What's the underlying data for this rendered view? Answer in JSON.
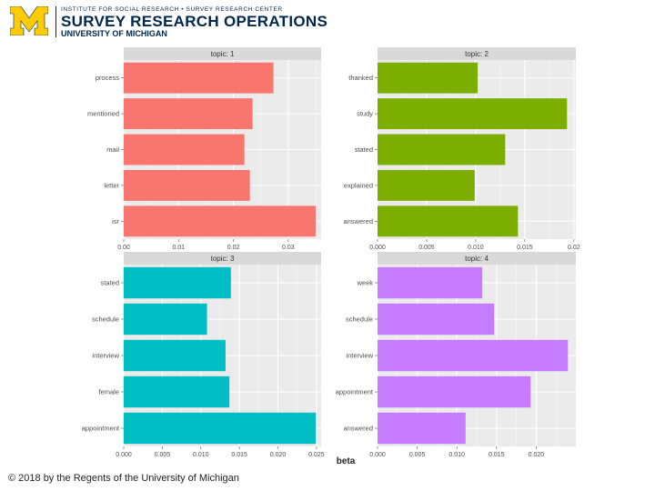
{
  "header": {
    "institute_line": "INSTITUTE FOR SOCIAL RESEARCH • SURVEY RESEARCH CENTER",
    "org_name": "SURVEY RESEARCH OPERATIONS",
    "university": "UNIVERSITY OF MICHIGAN",
    "logo_letter": "M",
    "brand_blue": "#00274c",
    "brand_maize": "#ffcb05"
  },
  "footer": {
    "copyright": "© 2018 by the Regents of the University of Michigan"
  },
  "chart_data": {
    "type": "bar",
    "orientation": "horizontal",
    "layout": "facet 2x2",
    "xlabel": "beta",
    "panel_background": "#ebebeb",
    "strip_background": "#d9d9d9",
    "panels": [
      {
        "strip": "topic: 1",
        "color": "#f8766d",
        "categories": [
          "process",
          "mentioned",
          "mail",
          "letter",
          "isr"
        ],
        "values": [
          0.0273,
          0.0235,
          0.022,
          0.023,
          0.035
        ],
        "xlim": [
          0,
          0.036
        ],
        "xticks": [
          0,
          0.01,
          0.02,
          0.03
        ],
        "xtick_labels": [
          "0.00",
          "0.01",
          "0.02",
          "0.03"
        ]
      },
      {
        "strip": "topic: 2",
        "color": "#7cae00",
        "categories": [
          "thanked",
          "study",
          "stated",
          "explained",
          "answered"
        ],
        "values": [
          0.0102,
          0.0193,
          0.013,
          0.0099,
          0.0143
        ],
        "xlim": [
          0,
          0.0202
        ],
        "xticks": [
          0,
          0.005,
          0.01,
          0.015,
          0.02
        ],
        "xtick_labels": [
          "0.000",
          "0.005",
          "0.010",
          "0.015",
          "0.02"
        ]
      },
      {
        "strip": "topic: 3",
        "color": "#00bfc4",
        "categories": [
          "stated",
          "schedule",
          "interview",
          "female",
          "appointment"
        ],
        "values": [
          0.0139,
          0.0108,
          0.0132,
          0.0137,
          0.0249
        ],
        "xlim": [
          0,
          0.0256
        ],
        "xticks": [
          0,
          0.005,
          0.01,
          0.015,
          0.02,
          0.025
        ],
        "xtick_labels": [
          "0.000",
          "0.005",
          "0.010",
          "0.015",
          "0.020",
          "0.025"
        ]
      },
      {
        "strip": "topic: 4",
        "color": "#c77cff",
        "categories": [
          "week",
          "schedule",
          "interview",
          "appointment",
          "answered"
        ],
        "values": [
          0.0132,
          0.0147,
          0.024,
          0.0193,
          0.0111
        ],
        "xlim": [
          0,
          0.025
        ],
        "xticks": [
          0,
          0.005,
          0.01,
          0.015,
          0.02
        ],
        "xtick_labels": [
          "0.000",
          "0.005",
          "0.010",
          "0.015",
          "0.020"
        ]
      }
    ]
  }
}
